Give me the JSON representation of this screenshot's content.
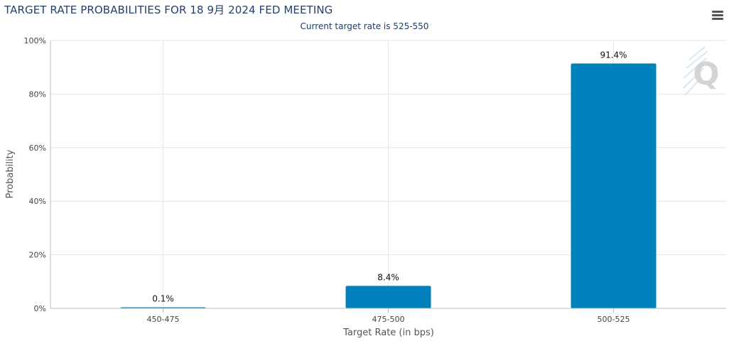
{
  "title": "TARGET RATE PROBABILITIES FOR 18 9月 2024 FED MEETING",
  "subtitle": "Current target rate is 525-550",
  "watermark": "Q",
  "colors": {
    "bar": "#0081bb",
    "grid": "#e6e6e6",
    "axis": "#bbbbbb",
    "title": "#23406b"
  },
  "chart_data": {
    "type": "bar",
    "categories": [
      "450-475",
      "475-500",
      "500-525"
    ],
    "values": [
      0.1,
      8.4,
      91.4
    ],
    "data_labels": [
      "0.1%",
      "8.4%",
      "91.4%"
    ],
    "ylim": [
      0,
      100
    ],
    "yticks": [
      0,
      20,
      40,
      60,
      80,
      100
    ],
    "ytick_labels": [
      "0%",
      "20%",
      "40%",
      "60%",
      "80%",
      "100%"
    ],
    "xlabel": "Target Rate (in bps)",
    "ylabel": "Probability",
    "grid": true
  }
}
